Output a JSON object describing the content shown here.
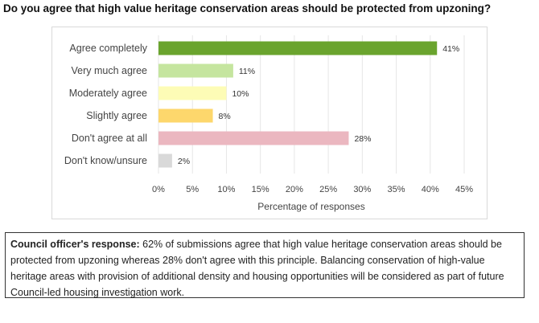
{
  "title": "Do you agree that high value heritage conservation areas should be protected from upzoning?",
  "chart_data": {
    "type": "bar",
    "orientation": "horizontal",
    "categories": [
      "Agree completely",
      "Very much agree",
      "Moderately agree",
      "Slightly agree",
      "Don't agree at all",
      "Don't know/unsure"
    ],
    "values": [
      41,
      11,
      10,
      8,
      28,
      2
    ],
    "value_labels": [
      "41%",
      "11%",
      "10%",
      "8%",
      "28%",
      "2%"
    ],
    "colors": [
      "#6aa42e",
      "#c5e59f",
      "#fdfcb6",
      "#fdd76c",
      "#ebb7c0",
      "#d9d9d9"
    ],
    "xlabel": "Percentage of responses",
    "xlim": [
      0,
      45
    ],
    "xticks": [
      0,
      5,
      10,
      15,
      20,
      25,
      30,
      35,
      40,
      45
    ],
    "xtick_labels": [
      "0%",
      "5%",
      "10%",
      "15%",
      "20%",
      "25%",
      "30%",
      "35%",
      "40%",
      "45%"
    ],
    "grid": "vertical"
  },
  "response": {
    "lead": "Council officer's response:",
    "text": " 62% of submissions agree that high value heritage conservation areas should be protected from upzoning whereas 28% don't agree with this principle. Balancing conservation of high-value heritage areas with provision of additional density and housing opportunities will be considered as part of future Council-led housing investigation work."
  }
}
